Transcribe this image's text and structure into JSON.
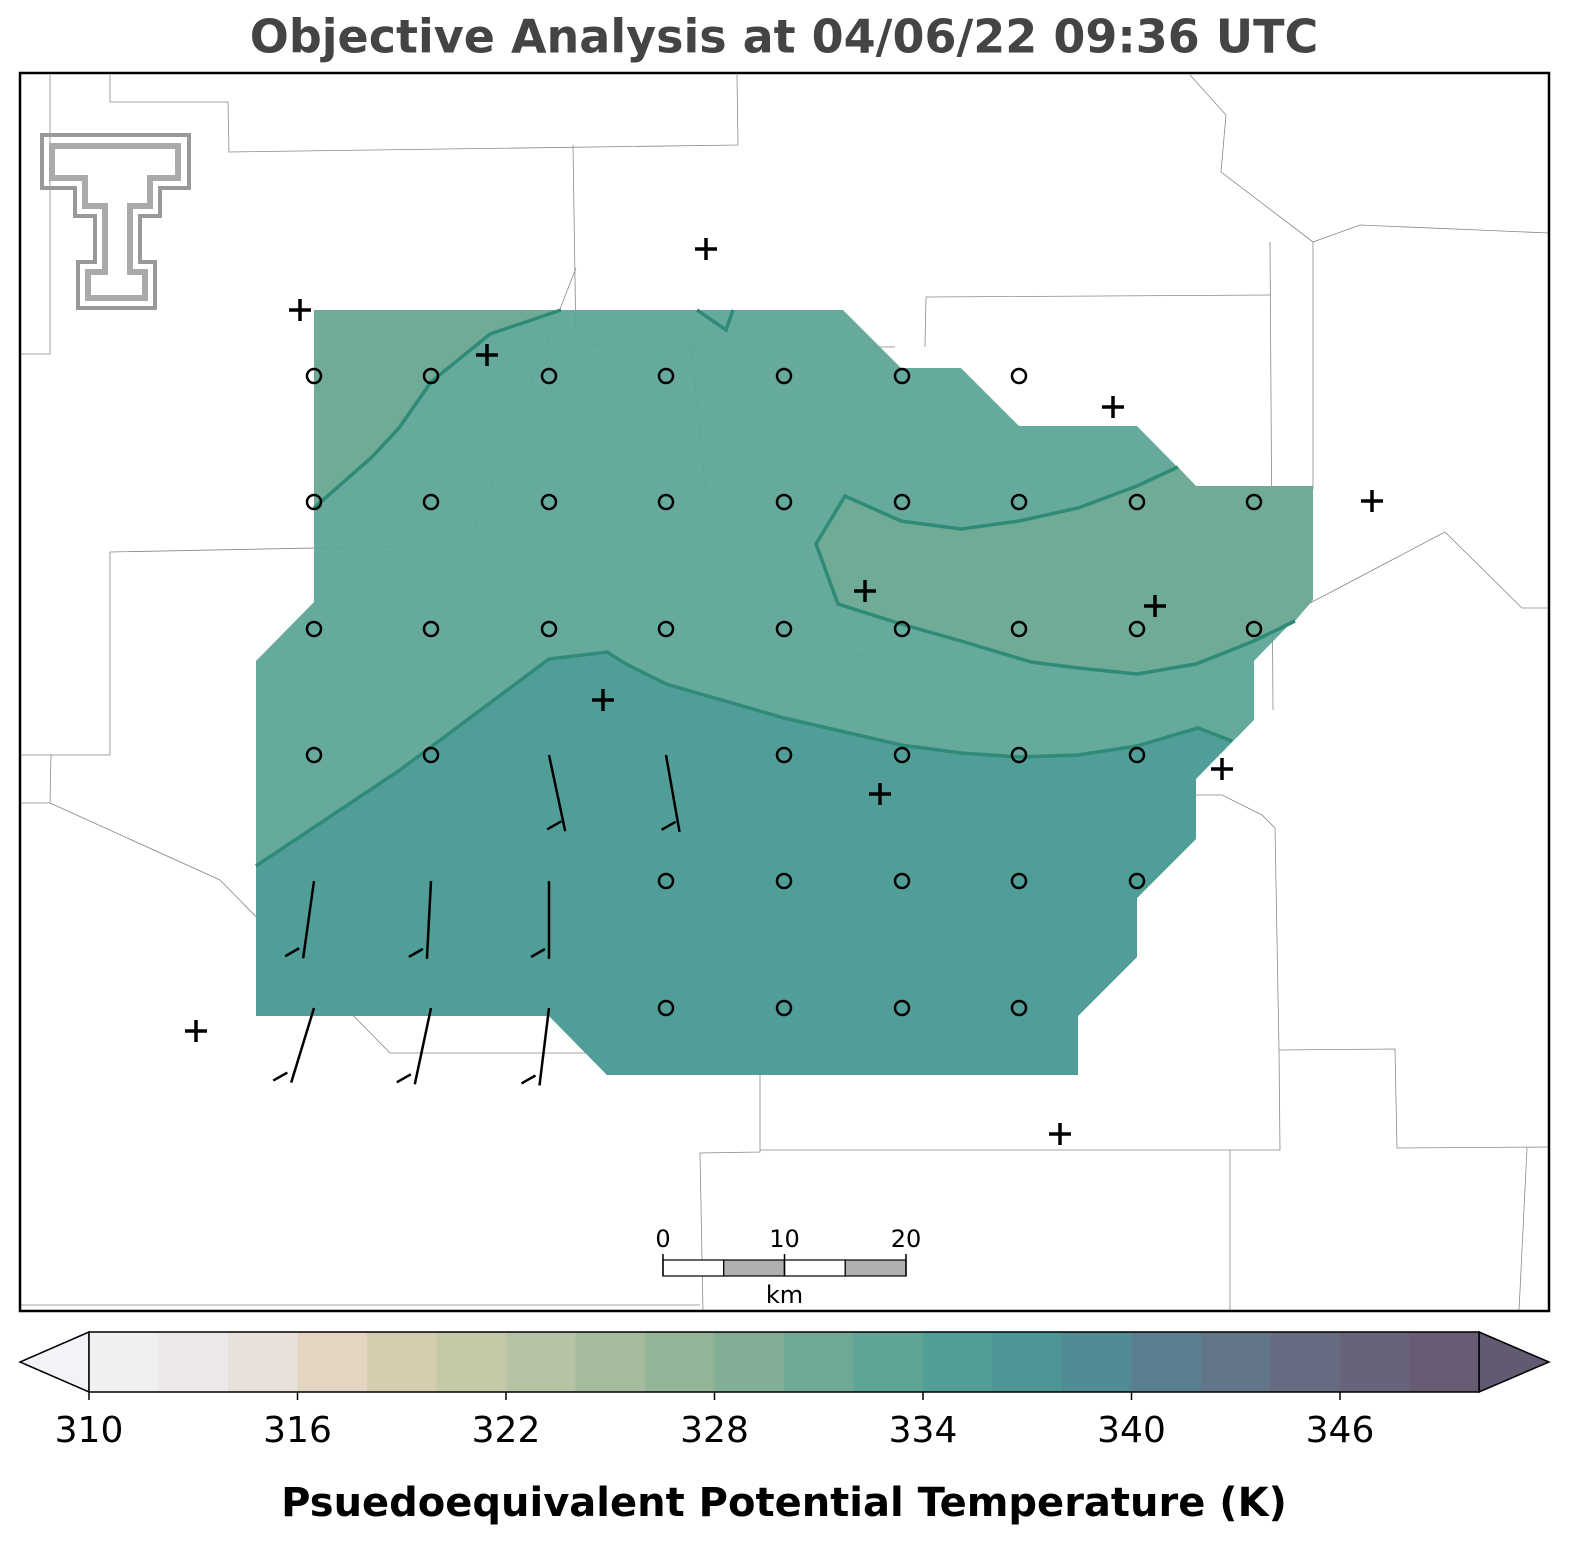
{
  "title": "Objective Analysis at 04/06/22 09:36 UTC",
  "scale_bar": {
    "ticks": [
      0,
      10,
      20
    ],
    "unit": "km"
  },
  "colorbar": {
    "label": "Psuedoequivalent Potential Temperature (K)",
    "lim": [
      310,
      350
    ],
    "ticks": [
      310,
      316,
      322,
      328,
      334,
      340,
      346
    ],
    "colors": [
      "#f0eff2",
      "#ede8e8",
      "#e8e0da",
      "#e3d5c2",
      "#d5cdaf",
      "#c6c9a8",
      "#b6c3a5",
      "#a4bb9d",
      "#93b496",
      "#82ae96",
      "#6fa995",
      "#5ea596",
      "#519e96",
      "#4e9596",
      "#518b94",
      "#5a8090",
      "#627589",
      "#656b80",
      "#67637a",
      "#685c74"
    ],
    "under_color": "#f3f2f7",
    "over_color": "#625a70"
  }
}
